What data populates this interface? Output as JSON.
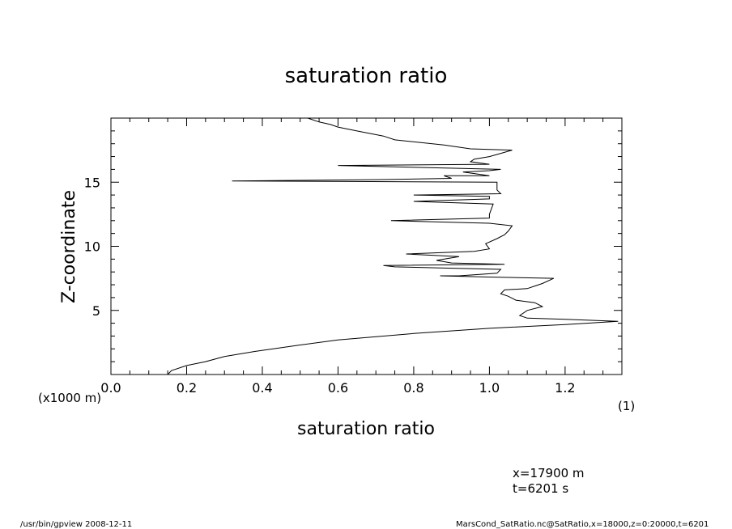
{
  "chart_data": {
    "type": "line",
    "title": "saturation ratio",
    "xlabel": "saturation ratio",
    "ylabel": "Z-coordinate",
    "x_unit": "(1)",
    "y_unit": "(x1000 m)",
    "xlim": [
      0.0,
      1.35
    ],
    "ylim": [
      0,
      20
    ],
    "x_ticks": [
      "0.0",
      "0.2",
      "0.4",
      "0.6",
      "0.8",
      "1.0",
      "1.2"
    ],
    "y_ticks": [
      "5",
      "10",
      "15"
    ],
    "grid": false,
    "legend": "none",
    "series": [
      {
        "points": [
          [
            0.15,
            0.0
          ],
          [
            0.16,
            0.3
          ],
          [
            0.2,
            0.7
          ],
          [
            0.25,
            1.0
          ],
          [
            0.3,
            1.4
          ],
          [
            0.38,
            1.8
          ],
          [
            0.5,
            2.3
          ],
          [
            0.6,
            2.7
          ],
          [
            0.8,
            3.2
          ],
          [
            1.0,
            3.6
          ],
          [
            1.2,
            3.9
          ],
          [
            1.34,
            4.15
          ],
          [
            1.2,
            4.3
          ],
          [
            1.1,
            4.4
          ],
          [
            1.08,
            4.6
          ],
          [
            1.1,
            5.0
          ],
          [
            1.14,
            5.3
          ],
          [
            1.12,
            5.6
          ],
          [
            1.07,
            5.8
          ],
          [
            1.05,
            6.1
          ],
          [
            1.03,
            6.3
          ],
          [
            1.04,
            6.6
          ],
          [
            1.1,
            6.7
          ],
          [
            1.12,
            6.9
          ],
          [
            1.14,
            7.1
          ],
          [
            1.17,
            7.5
          ],
          [
            1.0,
            7.6
          ],
          [
            0.87,
            7.7
          ],
          [
            0.92,
            7.7
          ],
          [
            1.02,
            7.9
          ],
          [
            1.03,
            8.2
          ],
          [
            0.88,
            8.3
          ],
          [
            0.75,
            8.4
          ],
          [
            0.72,
            8.5
          ],
          [
            1.04,
            8.6
          ],
          [
            0.9,
            8.7
          ],
          [
            0.86,
            8.9
          ],
          [
            0.92,
            9.2
          ],
          [
            0.85,
            9.3
          ],
          [
            0.78,
            9.4
          ],
          [
            0.96,
            9.6
          ],
          [
            1.0,
            9.8
          ],
          [
            0.99,
            10.2
          ],
          [
            1.02,
            10.6
          ],
          [
            1.04,
            10.9
          ],
          [
            1.05,
            11.2
          ],
          [
            1.06,
            11.6
          ],
          [
            1.0,
            11.8
          ],
          [
            0.74,
            12.0
          ],
          [
            1.0,
            12.2
          ],
          [
            1.0,
            12.5
          ],
          [
            1.01,
            13.3
          ],
          [
            0.8,
            13.5
          ],
          [
            1.0,
            13.7
          ],
          [
            1.0,
            13.9
          ],
          [
            0.8,
            14.0
          ],
          [
            1.03,
            14.1
          ],
          [
            1.02,
            14.4
          ],
          [
            1.02,
            15.0
          ],
          [
            0.32,
            15.1
          ],
          [
            0.7,
            15.2
          ],
          [
            0.9,
            15.3
          ],
          [
            0.88,
            15.5
          ],
          [
            1.0,
            15.5
          ],
          [
            0.93,
            15.8
          ],
          [
            1.0,
            15.9
          ],
          [
            1.03,
            16.0
          ],
          [
            0.6,
            16.3
          ],
          [
            1.0,
            16.4
          ],
          [
            0.95,
            16.6
          ],
          [
            0.96,
            16.8
          ],
          [
            1.0,
            17.0
          ],
          [
            1.06,
            17.5
          ],
          [
            0.95,
            17.6
          ],
          [
            0.88,
            17.9
          ],
          [
            0.75,
            18.3
          ],
          [
            0.72,
            18.6
          ],
          [
            0.65,
            19.0
          ],
          [
            0.6,
            19.3
          ],
          [
            0.58,
            19.5
          ],
          [
            0.55,
            19.7
          ],
          [
            0.52,
            20.0
          ]
        ]
      }
    ]
  },
  "footer": {
    "position_info_x": "x=17900 m",
    "position_info_t": "t=6201 s",
    "program": "/usr/bin/gpview  2008-12-11",
    "source": "MarsCond_SatRatio.nc@SatRatio,x=18000,z=0:20000,t=6201"
  }
}
